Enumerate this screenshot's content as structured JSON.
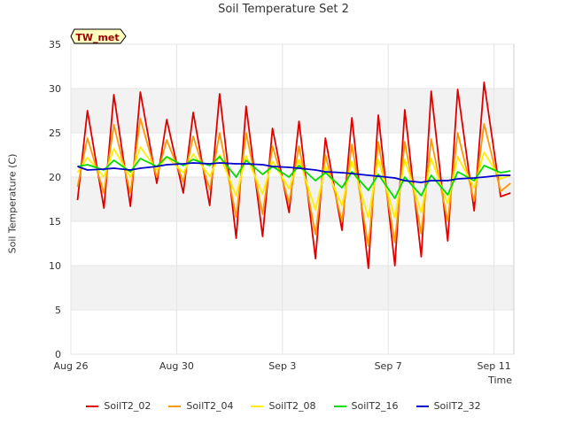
{
  "chart_data": {
    "type": "line",
    "title": "Soil Temperature Set 2",
    "xlabel": "Time",
    "ylabel": "Soil Temperature (C)",
    "station_tag": "TW_met",
    "ylim": [
      0,
      35
    ],
    "yticks": [
      0,
      5,
      10,
      15,
      20,
      25,
      30,
      35
    ],
    "xlim": [
      "2023-08-26",
      "2023-09-11T18:00"
    ],
    "xticks": [
      {
        "date": "2023-08-26",
        "label": "Aug 26"
      },
      {
        "date": "2023-08-30",
        "label": "Aug 30"
      },
      {
        "date": "2023-09-03",
        "label": "Sep 3"
      },
      {
        "date": "2023-09-07",
        "label": "Sep 7"
      },
      {
        "date": "2023-09-11",
        "label": "Sep 11"
      }
    ],
    "x": [
      "2023-08-26T06:00",
      "2023-08-26T15:00",
      "2023-08-27T06:00",
      "2023-08-27T15:00",
      "2023-08-28T06:00",
      "2023-08-28T15:00",
      "2023-08-29T06:00",
      "2023-08-29T15:00",
      "2023-08-30T06:00",
      "2023-08-30T15:00",
      "2023-08-31T06:00",
      "2023-08-31T15:00",
      "2023-09-01T06:00",
      "2023-09-01T15:00",
      "2023-09-02T06:00",
      "2023-09-02T15:00",
      "2023-09-03T06:00",
      "2023-09-03T15:00",
      "2023-09-04T06:00",
      "2023-09-04T15:00",
      "2023-09-05T06:00",
      "2023-09-05T15:00",
      "2023-09-06T06:00",
      "2023-09-06T15:00",
      "2023-09-07T06:00",
      "2023-09-07T15:00",
      "2023-09-08T06:00",
      "2023-09-08T15:00",
      "2023-09-09T06:00",
      "2023-09-09T15:00",
      "2023-09-10T06:00",
      "2023-09-10T15:00",
      "2023-09-11T06:00",
      "2023-09-11T15:00"
    ],
    "series": [
      {
        "name": "SoilT2_02",
        "color": "#e00000",
        "values": [
          17.4,
          27.5,
          16.5,
          29.3,
          16.7,
          29.6,
          19.3,
          26.5,
          18.2,
          27.3,
          16.8,
          29.4,
          13.1,
          28.0,
          13.3,
          25.5,
          16.0,
          26.3,
          10.8,
          24.4,
          14.0,
          26.7,
          9.7,
          27.0,
          10.0,
          27.6,
          11.0,
          29.7,
          12.8,
          29.9,
          16.2,
          30.7,
          17.8,
          18.2
        ]
      },
      {
        "name": "SoilT2_04",
        "color": "#ff9900",
        "values": [
          18.9,
          24.4,
          18.2,
          25.9,
          18.2,
          26.6,
          20.0,
          24.2,
          19.5,
          24.6,
          18.6,
          25.0,
          15.5,
          25.0,
          15.8,
          23.5,
          17.1,
          23.5,
          13.5,
          22.5,
          15.0,
          23.7,
          12.2,
          24.0,
          12.6,
          24.0,
          13.6,
          24.3,
          15.0,
          25.0,
          17.3,
          26.0,
          18.4,
          19.3
        ]
      },
      {
        "name": "SoilT2_08",
        "color": "#ffee00",
        "values": [
          20.5,
          22.2,
          20.0,
          23.2,
          20.0,
          23.4,
          20.8,
          22.3,
          20.5,
          22.6,
          20.1,
          22.5,
          17.9,
          22.4,
          18.1,
          21.8,
          18.7,
          22.0,
          16.3,
          21.2,
          16.8,
          21.8,
          15.4,
          22.0,
          15.4,
          22.0,
          16.0,
          22.1,
          17.0,
          22.3,
          18.8,
          22.8,
          19.8,
          20.2
        ]
      },
      {
        "name": "SoilT2_16",
        "color": "#00dd00",
        "values": [
          21.2,
          21.4,
          20.8,
          21.9,
          20.6,
          22.1,
          21.2,
          22.3,
          21.3,
          22.0,
          21.3,
          22.3,
          20.0,
          21.9,
          20.3,
          21.2,
          20.0,
          21.3,
          19.6,
          20.5,
          18.8,
          20.6,
          18.5,
          20.3,
          17.6,
          20.0,
          17.9,
          20.2,
          18.0,
          20.6,
          19.6,
          21.3,
          20.5,
          20.7
        ]
      },
      {
        "name": "SoilT2_32",
        "color": "#0000cc",
        "values": [
          21.2,
          20.8,
          20.9,
          21.0,
          20.8,
          21.0,
          21.2,
          21.4,
          21.5,
          21.6,
          21.5,
          21.6,
          21.5,
          21.5,
          21.4,
          21.2,
          21.1,
          21.0,
          20.8,
          20.6,
          20.5,
          20.4,
          20.2,
          20.1,
          19.9,
          19.6,
          19.4,
          19.6,
          19.6,
          19.8,
          19.9,
          20.0,
          20.2,
          20.2
        ]
      }
    ]
  }
}
